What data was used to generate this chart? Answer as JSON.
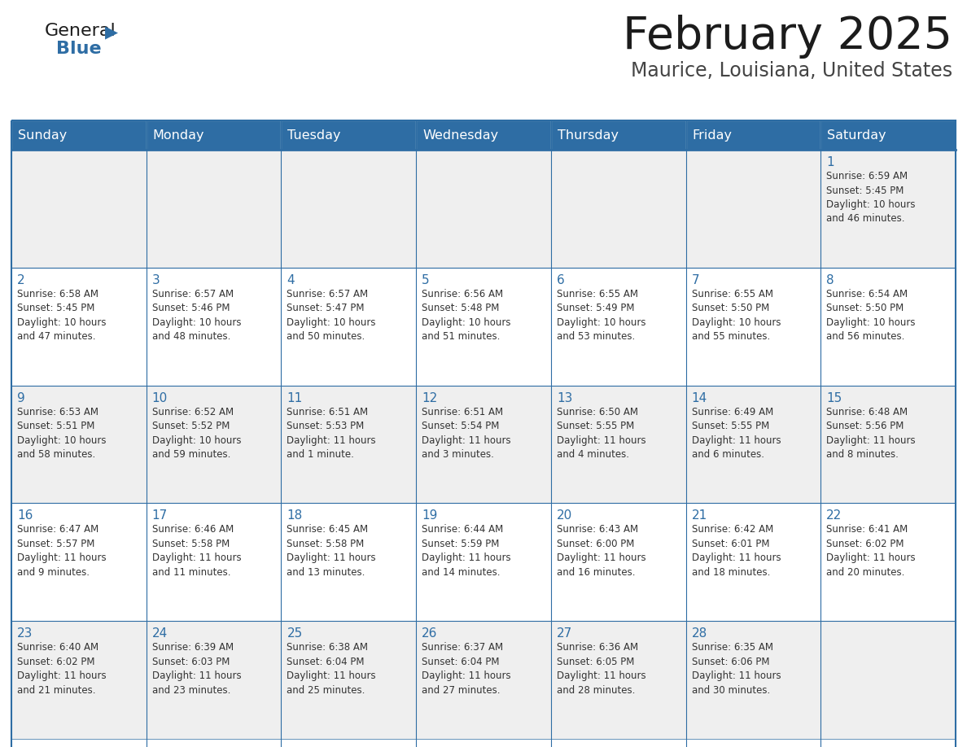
{
  "title": "February 2025",
  "subtitle": "Maurice, Louisiana, United States",
  "header_bg": "#2E6DA4",
  "header_text_color": "#FFFFFF",
  "border_color": "#2E6DA4",
  "day_num_color": "#2E6DA4",
  "cell_text_color": "#333333",
  "cell_bg_even": "#EFEFEF",
  "cell_bg_odd": "#FFFFFF",
  "day_headers": [
    "Sunday",
    "Monday",
    "Tuesday",
    "Wednesday",
    "Thursday",
    "Friday",
    "Saturday"
  ],
  "weeks": [
    [
      {
        "day": null,
        "text": ""
      },
      {
        "day": null,
        "text": ""
      },
      {
        "day": null,
        "text": ""
      },
      {
        "day": null,
        "text": ""
      },
      {
        "day": null,
        "text": ""
      },
      {
        "day": null,
        "text": ""
      },
      {
        "day": 1,
        "text": "Sunrise: 6:59 AM\nSunset: 5:45 PM\nDaylight: 10 hours\nand 46 minutes."
      }
    ],
    [
      {
        "day": 2,
        "text": "Sunrise: 6:58 AM\nSunset: 5:45 PM\nDaylight: 10 hours\nand 47 minutes."
      },
      {
        "day": 3,
        "text": "Sunrise: 6:57 AM\nSunset: 5:46 PM\nDaylight: 10 hours\nand 48 minutes."
      },
      {
        "day": 4,
        "text": "Sunrise: 6:57 AM\nSunset: 5:47 PM\nDaylight: 10 hours\nand 50 minutes."
      },
      {
        "day": 5,
        "text": "Sunrise: 6:56 AM\nSunset: 5:48 PM\nDaylight: 10 hours\nand 51 minutes."
      },
      {
        "day": 6,
        "text": "Sunrise: 6:55 AM\nSunset: 5:49 PM\nDaylight: 10 hours\nand 53 minutes."
      },
      {
        "day": 7,
        "text": "Sunrise: 6:55 AM\nSunset: 5:50 PM\nDaylight: 10 hours\nand 55 minutes."
      },
      {
        "day": 8,
        "text": "Sunrise: 6:54 AM\nSunset: 5:50 PM\nDaylight: 10 hours\nand 56 minutes."
      }
    ],
    [
      {
        "day": 9,
        "text": "Sunrise: 6:53 AM\nSunset: 5:51 PM\nDaylight: 10 hours\nand 58 minutes."
      },
      {
        "day": 10,
        "text": "Sunrise: 6:52 AM\nSunset: 5:52 PM\nDaylight: 10 hours\nand 59 minutes."
      },
      {
        "day": 11,
        "text": "Sunrise: 6:51 AM\nSunset: 5:53 PM\nDaylight: 11 hours\nand 1 minute."
      },
      {
        "day": 12,
        "text": "Sunrise: 6:51 AM\nSunset: 5:54 PM\nDaylight: 11 hours\nand 3 minutes."
      },
      {
        "day": 13,
        "text": "Sunrise: 6:50 AM\nSunset: 5:55 PM\nDaylight: 11 hours\nand 4 minutes."
      },
      {
        "day": 14,
        "text": "Sunrise: 6:49 AM\nSunset: 5:55 PM\nDaylight: 11 hours\nand 6 minutes."
      },
      {
        "day": 15,
        "text": "Sunrise: 6:48 AM\nSunset: 5:56 PM\nDaylight: 11 hours\nand 8 minutes."
      }
    ],
    [
      {
        "day": 16,
        "text": "Sunrise: 6:47 AM\nSunset: 5:57 PM\nDaylight: 11 hours\nand 9 minutes."
      },
      {
        "day": 17,
        "text": "Sunrise: 6:46 AM\nSunset: 5:58 PM\nDaylight: 11 hours\nand 11 minutes."
      },
      {
        "day": 18,
        "text": "Sunrise: 6:45 AM\nSunset: 5:58 PM\nDaylight: 11 hours\nand 13 minutes."
      },
      {
        "day": 19,
        "text": "Sunrise: 6:44 AM\nSunset: 5:59 PM\nDaylight: 11 hours\nand 14 minutes."
      },
      {
        "day": 20,
        "text": "Sunrise: 6:43 AM\nSunset: 6:00 PM\nDaylight: 11 hours\nand 16 minutes."
      },
      {
        "day": 21,
        "text": "Sunrise: 6:42 AM\nSunset: 6:01 PM\nDaylight: 11 hours\nand 18 minutes."
      },
      {
        "day": 22,
        "text": "Sunrise: 6:41 AM\nSunset: 6:02 PM\nDaylight: 11 hours\nand 20 minutes."
      }
    ],
    [
      {
        "day": 23,
        "text": "Sunrise: 6:40 AM\nSunset: 6:02 PM\nDaylight: 11 hours\nand 21 minutes."
      },
      {
        "day": 24,
        "text": "Sunrise: 6:39 AM\nSunset: 6:03 PM\nDaylight: 11 hours\nand 23 minutes."
      },
      {
        "day": 25,
        "text": "Sunrise: 6:38 AM\nSunset: 6:04 PM\nDaylight: 11 hours\nand 25 minutes."
      },
      {
        "day": 26,
        "text": "Sunrise: 6:37 AM\nSunset: 6:04 PM\nDaylight: 11 hours\nand 27 minutes."
      },
      {
        "day": 27,
        "text": "Sunrise: 6:36 AM\nSunset: 6:05 PM\nDaylight: 11 hours\nand 28 minutes."
      },
      {
        "day": 28,
        "text": "Sunrise: 6:35 AM\nSunset: 6:06 PM\nDaylight: 11 hours\nand 30 minutes."
      },
      {
        "day": null,
        "text": ""
      }
    ]
  ]
}
